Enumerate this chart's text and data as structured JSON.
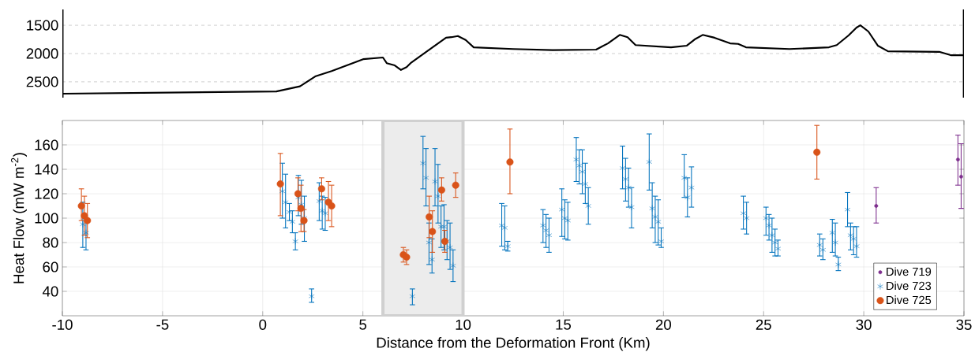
{
  "chart_data": [
    {
      "type": "line",
      "xlim": [
        -10,
        35
      ],
      "ylim": [
        2780,
        1220
      ],
      "yticks": [
        1500,
        2000,
        2500
      ],
      "tick_labels": "y",
      "grid": "y",
      "series": [
        {
          "color": "#000000",
          "x": [
            -10,
            0.68,
            1.86,
            2.65,
            3.44,
            5.01,
            6.0,
            6.19,
            6.59,
            6.9,
            7.18,
            7.38,
            8.16,
            9.15,
            9.42,
            9.74,
            10.13,
            10.53,
            12.5,
            14.47,
            16.64,
            17.23,
            17.82,
            18.21,
            18.61,
            20.38,
            21.17,
            21.56,
            21.96,
            22.55,
            23.33,
            23.73,
            24.12,
            26.29,
            28.26,
            28.65,
            29.24,
            29.64,
            29.83,
            30.23,
            30.7,
            31.21,
            33.77,
            34.37,
            34.96
          ],
          "values": [
            2710,
            2670,
            2580,
            2400,
            2310,
            2100,
            2070,
            2170,
            2210,
            2290,
            2240,
            2170,
            1970,
            1720,
            1710,
            1690,
            1760,
            1890,
            1920,
            1940,
            1930,
            1820,
            1670,
            1710,
            1850,
            1890,
            1860,
            1750,
            1670,
            1720,
            1820,
            1830,
            1890,
            1920,
            1890,
            1850,
            1680,
            1540,
            1500,
            1610,
            1860,
            1960,
            1970,
            2030,
            2030
          ]
        }
      ]
    },
    {
      "type": "scatter",
      "xlabel": "Distance from the Deformation Front (Km)",
      "ylabel": "Heat Flow (mW m$^{-2}$)",
      "xlim": [
        -10,
        35
      ],
      "xticks": [
        -10,
        -5,
        0,
        5,
        10,
        15,
        20,
        25,
        30,
        35
      ],
      "ylim": [
        20,
        180
      ],
      "yticks": [
        40,
        60,
        80,
        100,
        120,
        140,
        160
      ],
      "grid": true,
      "legend": "bottom right",
      "bands": [
        {
          "axis": "x",
          "from": 6,
          "to": 10,
          "color": "#ececec"
        }
      ],
      "series": [
        {
          "name": "Dive 719",
          "color": "#7e2f8e",
          "marker": "circle",
          "x": [
            30.62,
            34.7,
            34.86
          ],
          "values": [
            110,
            148,
            134
          ],
          "errors": [
            [
              96,
              125
            ],
            [
              127,
              168
            ],
            [
              108,
              161
            ]
          ]
        },
        {
          "name": "Dive 723",
          "color": "#0072bd",
          "marker": "cross",
          "x": [
            -8.98,
            -8.82,
            0.98,
            1.14,
            1.33,
            1.48,
            1.63,
            1.78,
            1.93,
            2.08,
            2.44,
            2.82,
            2.97,
            3.12,
            7.47,
            8.0,
            8.15,
            8.3,
            8.45,
            8.6,
            8.75,
            8.9,
            9.05,
            9.2,
            9.35,
            9.5,
            11.93,
            12.08,
            12.23,
            13.99,
            14.14,
            14.29,
            14.93,
            15.08,
            15.23,
            15.65,
            15.8,
            15.95,
            16.1,
            16.25,
            17.96,
            18.11,
            18.26,
            18.41,
            19.29,
            19.44,
            19.59,
            19.74,
            19.89,
            21.04,
            21.2,
            21.4,
            23.99,
            24.15,
            25.12,
            25.27,
            25.42,
            25.57,
            25.72,
            27.8,
            27.96,
            28.43,
            28.58,
            28.73,
            29.19,
            29.34,
            29.49,
            29.64
          ],
          "values": [
            95,
            88,
            122,
            113,
            105,
            97,
            81,
            117,
            111,
            100,
            36,
            114,
            106,
            104,
            36,
            145,
            133,
            80,
            66,
            130,
            118,
            93,
            93,
            81,
            76,
            61,
            94,
            92,
            77,
            94,
            90,
            86,
            107,
            100,
            98,
            148,
            143,
            138,
            128,
            110,
            141,
            132,
            125,
            109,
            146,
            108,
            101,
            97,
            81,
            133,
            117,
            125,
            104,
            100,
            100,
            94,
            86,
            80,
            75,
            78,
            74,
            88,
            80,
            62,
            107,
            86,
            83,
            77
          ],
          "errors": [
            [
              76,
              113
            ],
            [
              74,
              100
            ],
            [
              100,
              145
            ],
            [
              92,
              136
            ],
            [
              98,
              112
            ],
            [
              88,
              106
            ],
            [
              74,
              88
            ],
            [
              102,
              135
            ],
            [
              95,
              131
            ],
            [
              81,
              118
            ],
            [
              31,
              42
            ],
            [
              98,
              129
            ],
            [
              91,
              118
            ],
            [
              90,
              117
            ],
            [
              29,
              42
            ],
            [
              124,
              167
            ],
            [
              110,
              157
            ],
            [
              62,
              96
            ],
            [
              55,
              83
            ],
            [
              110,
              157
            ],
            [
              96,
              144
            ],
            [
              76,
              110
            ],
            [
              74,
              111
            ],
            [
              66,
              98
            ],
            [
              58,
              96
            ],
            [
              48,
              74
            ],
            [
              77,
              112
            ],
            [
              74,
              110
            ],
            [
              73,
              81
            ],
            [
              80,
              107
            ],
            [
              76,
              103
            ],
            [
              72,
              100
            ],
            [
              85,
              124
            ],
            [
              83,
              115
            ],
            [
              82,
              113
            ],
            [
              130,
              166
            ],
            [
              128,
              156
            ],
            [
              120,
              156
            ],
            [
              112,
              145
            ],
            [
              95,
              125
            ],
            [
              124,
              159
            ],
            [
              114,
              149
            ],
            [
              109,
              141
            ],
            [
              92,
              125
            ],
            [
              123,
              169
            ],
            [
              92,
              129
            ],
            [
              80,
              118
            ],
            [
              78,
              115
            ],
            [
              76,
              92
            ],
            [
              117,
              152
            ],
            [
              101,
              133
            ],
            [
              109,
              142
            ],
            [
              91,
              118
            ],
            [
              87,
              113
            ],
            [
              86,
              109
            ],
            [
              82,
              103
            ],
            [
              72,
              100
            ],
            [
              69,
              91
            ],
            [
              69,
              82
            ],
            [
              69,
              87
            ],
            [
              66,
              83
            ],
            [
              72,
              99
            ],
            [
              69,
              96
            ],
            [
              57,
              68
            ],
            [
              93,
              121
            ],
            [
              74,
              96
            ],
            [
              70,
              93
            ],
            [
              68,
              93
            ]
          ]
        },
        {
          "name": "Dive 725",
          "color": "#d95319",
          "marker": "circle",
          "x": [
            -9.05,
            -8.9,
            -8.75,
            0.88,
            1.76,
            1.91,
            2.06,
            2.94,
            3.28,
            3.44,
            7.02,
            7.18,
            8.31,
            8.47,
            8.93,
            9.09,
            9.63,
            12.34,
            27.66
          ],
          "values": [
            110,
            102,
            98,
            128,
            120,
            108,
            98,
            124,
            113,
            110,
            70,
            68,
            101,
            89,
            123,
            81,
            127,
            146,
            154
          ],
          "errors": [
            [
              98,
              124
            ],
            [
              86,
              118
            ],
            [
              84,
              112
            ],
            [
              102,
              153
            ],
            [
              106,
              133
            ],
            [
              89,
              127
            ],
            [
              89,
              107
            ],
            [
              115,
              133
            ],
            [
              98,
              130
            ],
            [
              93,
              127
            ],
            [
              64,
              76
            ],
            [
              62,
              74
            ],
            [
              84,
              118
            ],
            [
              72,
              106
            ],
            [
              114,
              133
            ],
            [
              72,
              90
            ],
            [
              117,
              137
            ],
            [
              120,
              173
            ],
            [
              132,
              176
            ]
          ]
        }
      ]
    }
  ]
}
